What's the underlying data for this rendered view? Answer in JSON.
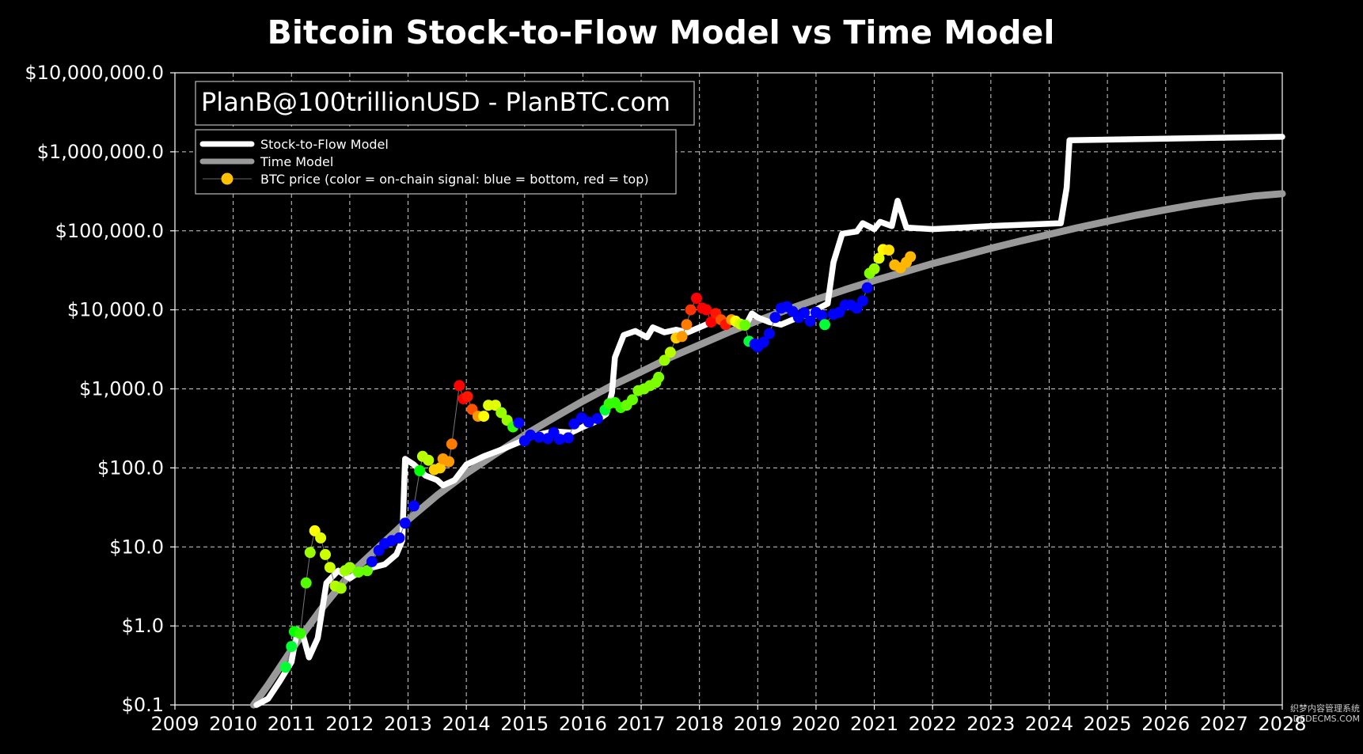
{
  "chart_data": {
    "type": "line",
    "title": "Bitcoin Stock-to-Flow Model vs Time Model",
    "credit": "PlanB@100trillionUSD - PlanBTC.com",
    "xlabel": "",
    "ylabel": "",
    "x_scale": "linear (years)",
    "y_scale": "log",
    "xlim": [
      2009,
      2028
    ],
    "ylim": [
      0.1,
      10000000
    ],
    "grid": true,
    "legend_position": "top-left",
    "x_ticks": [
      "2009",
      "2010",
      "2011",
      "2012",
      "2013",
      "2014",
      "2015",
      "2016",
      "2017",
      "2018",
      "2019",
      "2020",
      "2021",
      "2022",
      "2023",
      "2024",
      "2025",
      "2026",
      "2027",
      "2028"
    ],
    "y_ticks": [
      {
        "v": 0.1,
        "label": "$0.1"
      },
      {
        "v": 1,
        "label": "$1.0"
      },
      {
        "v": 10,
        "label": "$10.0"
      },
      {
        "v": 100,
        "label": "$100.0"
      },
      {
        "v": 1000,
        "label": "$1,000.0"
      },
      {
        "v": 10000,
        "label": "$10,000.0"
      },
      {
        "v": 100000,
        "label": "$100,000.0"
      },
      {
        "v": 1000000,
        "label": "$1,000,000.0"
      },
      {
        "v": 10000000,
        "label": "$10,000,000.0"
      }
    ],
    "series": [
      {
        "name": "Stock-to-Flow Model",
        "color": "#ffffff",
        "points": [
          [
            2010.4,
            0.1
          ],
          [
            2010.6,
            0.12
          ],
          [
            2010.8,
            0.2
          ],
          [
            2011.0,
            0.35
          ],
          [
            2011.1,
            0.9
          ],
          [
            2011.2,
            0.75
          ],
          [
            2011.3,
            0.4
          ],
          [
            2011.45,
            0.7
          ],
          [
            2011.6,
            3.5
          ],
          [
            2011.8,
            5
          ],
          [
            2012.0,
            4
          ],
          [
            2012.2,
            5
          ],
          [
            2012.4,
            5.5
          ],
          [
            2012.6,
            6
          ],
          [
            2012.8,
            8
          ],
          [
            2012.9,
            12
          ],
          [
            2012.95,
            130
          ],
          [
            2013.1,
            110
          ],
          [
            2013.3,
            80
          ],
          [
            2013.5,
            70
          ],
          [
            2013.6,
            60
          ],
          [
            2013.8,
            70
          ],
          [
            2014.0,
            110
          ],
          [
            2014.3,
            140
          ],
          [
            2014.6,
            170
          ],
          [
            2014.9,
            210
          ],
          [
            2015.2,
            260
          ],
          [
            2015.5,
            290
          ],
          [
            2015.8,
            280
          ],
          [
            2016.0,
            330
          ],
          [
            2016.2,
            380
          ],
          [
            2016.4,
            480
          ],
          [
            2016.5,
            900
          ],
          [
            2016.55,
            2500
          ],
          [
            2016.7,
            4800
          ],
          [
            2016.9,
            5400
          ],
          [
            2017.1,
            4500
          ],
          [
            2017.2,
            6000
          ],
          [
            2017.4,
            5200
          ],
          [
            2017.6,
            5600
          ],
          [
            2017.8,
            5200
          ],
          [
            2018.0,
            6000
          ],
          [
            2018.3,
            7500
          ],
          [
            2018.6,
            7000
          ],
          [
            2018.8,
            6500
          ],
          [
            2018.9,
            9000
          ],
          [
            2019.0,
            8000
          ],
          [
            2019.2,
            7000
          ],
          [
            2019.4,
            6500
          ],
          [
            2019.6,
            7500
          ],
          [
            2019.8,
            8500
          ],
          [
            2020.0,
            10000
          ],
          [
            2020.2,
            12000
          ],
          [
            2020.3,
            40000
          ],
          [
            2020.45,
            92000
          ],
          [
            2020.7,
            98000
          ],
          [
            2020.8,
            125000
          ],
          [
            2021.0,
            105000
          ],
          [
            2021.1,
            130000
          ],
          [
            2021.3,
            115000
          ],
          [
            2021.4,
            240000
          ],
          [
            2021.55,
            110000
          ],
          [
            2022.0,
            105000
          ],
          [
            2023.0,
            115000
          ],
          [
            2024.2,
            125000
          ],
          [
            2024.3,
            350000
          ],
          [
            2024.35,
            1400000
          ],
          [
            2026.0,
            1470000
          ],
          [
            2028.0,
            1550000
          ]
        ]
      },
      {
        "name": "Time Model",
        "color": "#999999",
        "points": [
          [
            2010.35,
            0.1
          ],
          [
            2010.6,
            0.18
          ],
          [
            2011.0,
            0.5
          ],
          [
            2011.5,
            1.6
          ],
          [
            2012.0,
            4.5
          ],
          [
            2012.5,
            10
          ],
          [
            2013.0,
            22
          ],
          [
            2013.5,
            45
          ],
          [
            2014.0,
            85
          ],
          [
            2014.5,
            150
          ],
          [
            2015.0,
            260
          ],
          [
            2015.5,
            430
          ],
          [
            2016.0,
            700
          ],
          [
            2016.5,
            1100
          ],
          [
            2017.0,
            1650
          ],
          [
            2017.5,
            2500
          ],
          [
            2018.0,
            3600
          ],
          [
            2018.5,
            5200
          ],
          [
            2019.0,
            7300
          ],
          [
            2019.5,
            10000
          ],
          [
            2020.0,
            13500
          ],
          [
            2020.5,
            18000
          ],
          [
            2021.0,
            23500
          ],
          [
            2021.5,
            30000
          ],
          [
            2022.0,
            38500
          ],
          [
            2022.5,
            48000
          ],
          [
            2023.0,
            60000
          ],
          [
            2023.5,
            74000
          ],
          [
            2024.0,
            90000
          ],
          [
            2024.5,
            110000
          ],
          [
            2025.0,
            132000
          ],
          [
            2025.5,
            158000
          ],
          [
            2026.0,
            185000
          ],
          [
            2026.5,
            215000
          ],
          [
            2027.0,
            245000
          ],
          [
            2027.5,
            275000
          ],
          [
            2028.0,
            295000
          ]
        ]
      },
      {
        "name": "BTC price (color = on-chain signal: blue = bottom, red = top)",
        "type": "scatter",
        "points": [
          {
            "x": 2010.9,
            "y": 0.3,
            "s": 0.45
          },
          {
            "x": 2011.0,
            "y": 0.55,
            "s": 0.45
          },
          {
            "x": 2011.05,
            "y": 0.85,
            "s": 0.5
          },
          {
            "x": 2011.15,
            "y": 0.8,
            "s": 0.55
          },
          {
            "x": 2011.25,
            "y": 3.5,
            "s": 0.58
          },
          {
            "x": 2011.32,
            "y": 8.5,
            "s": 0.65
          },
          {
            "x": 2011.4,
            "y": 16,
            "s": 0.75
          },
          {
            "x": 2011.5,
            "y": 13,
            "s": 0.72
          },
          {
            "x": 2011.58,
            "y": 8,
            "s": 0.7
          },
          {
            "x": 2011.66,
            "y": 5.5,
            "s": 0.7
          },
          {
            "x": 2011.75,
            "y": 3.2,
            "s": 0.68
          },
          {
            "x": 2011.85,
            "y": 3,
            "s": 0.66
          },
          {
            "x": 2011.92,
            "y": 5,
            "s": 0.66
          },
          {
            "x": 2012.0,
            "y": 5.5,
            "s": 0.65
          },
          {
            "x": 2012.15,
            "y": 4.8,
            "s": 0.6
          },
          {
            "x": 2012.3,
            "y": 5,
            "s": 0.6
          },
          {
            "x": 2012.38,
            "y": 6.5,
            "s": 0.05
          },
          {
            "x": 2012.5,
            "y": 9,
            "s": 0.05
          },
          {
            "x": 2012.6,
            "y": 11,
            "s": 0.05
          },
          {
            "x": 2012.72,
            "y": 12,
            "s": 0.05
          },
          {
            "x": 2012.85,
            "y": 13,
            "s": 0.05
          },
          {
            "x": 2012.95,
            "y": 20,
            "s": 0.05
          },
          {
            "x": 2013.1,
            "y": 33,
            "s": 0.05
          },
          {
            "x": 2013.2,
            "y": 92,
            "s": 0.5
          },
          {
            "x": 2013.25,
            "y": 140,
            "s": 0.68
          },
          {
            "x": 2013.35,
            "y": 125,
            "s": 0.68
          },
          {
            "x": 2013.45,
            "y": 95,
            "s": 0.8
          },
          {
            "x": 2013.55,
            "y": 100,
            "s": 0.8
          },
          {
            "x": 2013.6,
            "y": 130,
            "s": 0.85
          },
          {
            "x": 2013.7,
            "y": 120,
            "s": 0.85
          },
          {
            "x": 2013.75,
            "y": 200,
            "s": 0.88
          },
          {
            "x": 2013.88,
            "y": 1100,
            "s": 1.0
          },
          {
            "x": 2013.95,
            "y": 750,
            "s": 1.0
          },
          {
            "x": 2014.02,
            "y": 800,
            "s": 0.98
          },
          {
            "x": 2014.1,
            "y": 550,
            "s": 0.92
          },
          {
            "x": 2014.2,
            "y": 450,
            "s": 0.85
          },
          {
            "x": 2014.3,
            "y": 450,
            "s": 0.75
          },
          {
            "x": 2014.38,
            "y": 620,
            "s": 0.72
          },
          {
            "x": 2014.5,
            "y": 620,
            "s": 0.72
          },
          {
            "x": 2014.6,
            "y": 500,
            "s": 0.65
          },
          {
            "x": 2014.7,
            "y": 400,
            "s": 0.65
          },
          {
            "x": 2014.8,
            "y": 330,
            "s": 0.55
          },
          {
            "x": 2014.9,
            "y": 370,
            "s": 0.05
          },
          {
            "x": 2015.0,
            "y": 220,
            "s": 0.05
          },
          {
            "x": 2015.1,
            "y": 260,
            "s": 0.05
          },
          {
            "x": 2015.25,
            "y": 245,
            "s": 0.05
          },
          {
            "x": 2015.4,
            "y": 235,
            "s": 0.05
          },
          {
            "x": 2015.5,
            "y": 280,
            "s": 0.05
          },
          {
            "x": 2015.6,
            "y": 230,
            "s": 0.05
          },
          {
            "x": 2015.75,
            "y": 240,
            "s": 0.05
          },
          {
            "x": 2015.85,
            "y": 360,
            "s": 0.05
          },
          {
            "x": 2015.98,
            "y": 430,
            "s": 0.05
          },
          {
            "x": 2016.1,
            "y": 380,
            "s": 0.05
          },
          {
            "x": 2016.25,
            "y": 420,
            "s": 0.08
          },
          {
            "x": 2016.38,
            "y": 540,
            "s": 0.45
          },
          {
            "x": 2016.45,
            "y": 650,
            "s": 0.55
          },
          {
            "x": 2016.55,
            "y": 670,
            "s": 0.55
          },
          {
            "x": 2016.65,
            "y": 580,
            "s": 0.55
          },
          {
            "x": 2016.75,
            "y": 620,
            "s": 0.6
          },
          {
            "x": 2016.85,
            "y": 730,
            "s": 0.6
          },
          {
            "x": 2016.95,
            "y": 950,
            "s": 0.62
          },
          {
            "x": 2017.05,
            "y": 1000,
            "s": 0.62
          },
          {
            "x": 2017.15,
            "y": 1100,
            "s": 0.62
          },
          {
            "x": 2017.25,
            "y": 1200,
            "s": 0.62
          },
          {
            "x": 2017.3,
            "y": 1400,
            "s": 0.62
          },
          {
            "x": 2017.4,
            "y": 2300,
            "s": 0.65
          },
          {
            "x": 2017.5,
            "y": 2900,
            "s": 0.68
          },
          {
            "x": 2017.6,
            "y": 4400,
            "s": 0.8
          },
          {
            "x": 2017.7,
            "y": 4600,
            "s": 0.85
          },
          {
            "x": 2017.78,
            "y": 6500,
            "s": 0.88
          },
          {
            "x": 2017.85,
            "y": 10000,
            "s": 0.95
          },
          {
            "x": 2017.95,
            "y": 14000,
            "s": 1.0
          },
          {
            "x": 2018.05,
            "y": 10500,
            "s": 1.0
          },
          {
            "x": 2018.12,
            "y": 10000,
            "s": 1.0
          },
          {
            "x": 2018.2,
            "y": 7000,
            "s": 1.0
          },
          {
            "x": 2018.28,
            "y": 9000,
            "s": 0.98
          },
          {
            "x": 2018.37,
            "y": 7500,
            "s": 0.92
          },
          {
            "x": 2018.45,
            "y": 6500,
            "s": 0.98
          },
          {
            "x": 2018.55,
            "y": 7500,
            "s": 0.85
          },
          {
            "x": 2018.62,
            "y": 7200,
            "s": 0.75
          },
          {
            "x": 2018.7,
            "y": 6600,
            "s": 0.7
          },
          {
            "x": 2018.78,
            "y": 6400,
            "s": 0.6
          },
          {
            "x": 2018.85,
            "y": 4000,
            "s": 0.45
          },
          {
            "x": 2018.95,
            "y": 3700,
            "s": 0.05
          },
          {
            "x": 2019.0,
            "y": 3400,
            "s": 0.05
          },
          {
            "x": 2019.1,
            "y": 3900,
            "s": 0.05
          },
          {
            "x": 2019.2,
            "y": 5000,
            "s": 0.05
          },
          {
            "x": 2019.3,
            "y": 8000,
            "s": 0.05
          },
          {
            "x": 2019.4,
            "y": 10500,
            "s": 0.05
          },
          {
            "x": 2019.5,
            "y": 11000,
            "s": 0.05
          },
          {
            "x": 2019.6,
            "y": 9500,
            "s": 0.05
          },
          {
            "x": 2019.7,
            "y": 8000,
            "s": 0.05
          },
          {
            "x": 2019.8,
            "y": 9200,
            "s": 0.05
          },
          {
            "x": 2019.9,
            "y": 7200,
            "s": 0.05
          },
          {
            "x": 2020.0,
            "y": 9300,
            "s": 0.05
          },
          {
            "x": 2020.1,
            "y": 8500,
            "s": 0.05
          },
          {
            "x": 2020.15,
            "y": 6500,
            "s": 0.45
          },
          {
            "x": 2020.3,
            "y": 8800,
            "s": 0.05
          },
          {
            "x": 2020.4,
            "y": 9300,
            "s": 0.05
          },
          {
            "x": 2020.5,
            "y": 11500,
            "s": 0.05
          },
          {
            "x": 2020.6,
            "y": 11500,
            "s": 0.05
          },
          {
            "x": 2020.7,
            "y": 10500,
            "s": 0.05
          },
          {
            "x": 2020.8,
            "y": 13000,
            "s": 0.05
          },
          {
            "x": 2020.88,
            "y": 19000,
            "s": 0.05
          },
          {
            "x": 2020.92,
            "y": 29000,
            "s": 0.62
          },
          {
            "x": 2021.0,
            "y": 33000,
            "s": 0.65
          },
          {
            "x": 2021.08,
            "y": 45000,
            "s": 0.72
          },
          {
            "x": 2021.15,
            "y": 58000,
            "s": 0.76
          },
          {
            "x": 2021.25,
            "y": 57000,
            "s": 0.78
          },
          {
            "x": 2021.35,
            "y": 37000,
            "s": 0.82
          },
          {
            "x": 2021.45,
            "y": 34000,
            "s": 0.82
          },
          {
            "x": 2021.55,
            "y": 40000,
            "s": 0.82
          },
          {
            "x": 2021.62,
            "y": 47000,
            "s": 0.82
          }
        ]
      }
    ],
    "legend": [
      {
        "label": "Stock-to-Flow Model",
        "color": "#ffffff",
        "kind": "thick-line"
      },
      {
        "label": "Time Model",
        "color": "#999999",
        "kind": "thick-line"
      },
      {
        "label": "BTC price (color = on-chain signal: blue = bottom, red = top)",
        "color": "#ffc000",
        "kind": "marker"
      }
    ],
    "watermark": [
      "织梦内容管理系统",
      "DEDECMS.COM"
    ]
  }
}
